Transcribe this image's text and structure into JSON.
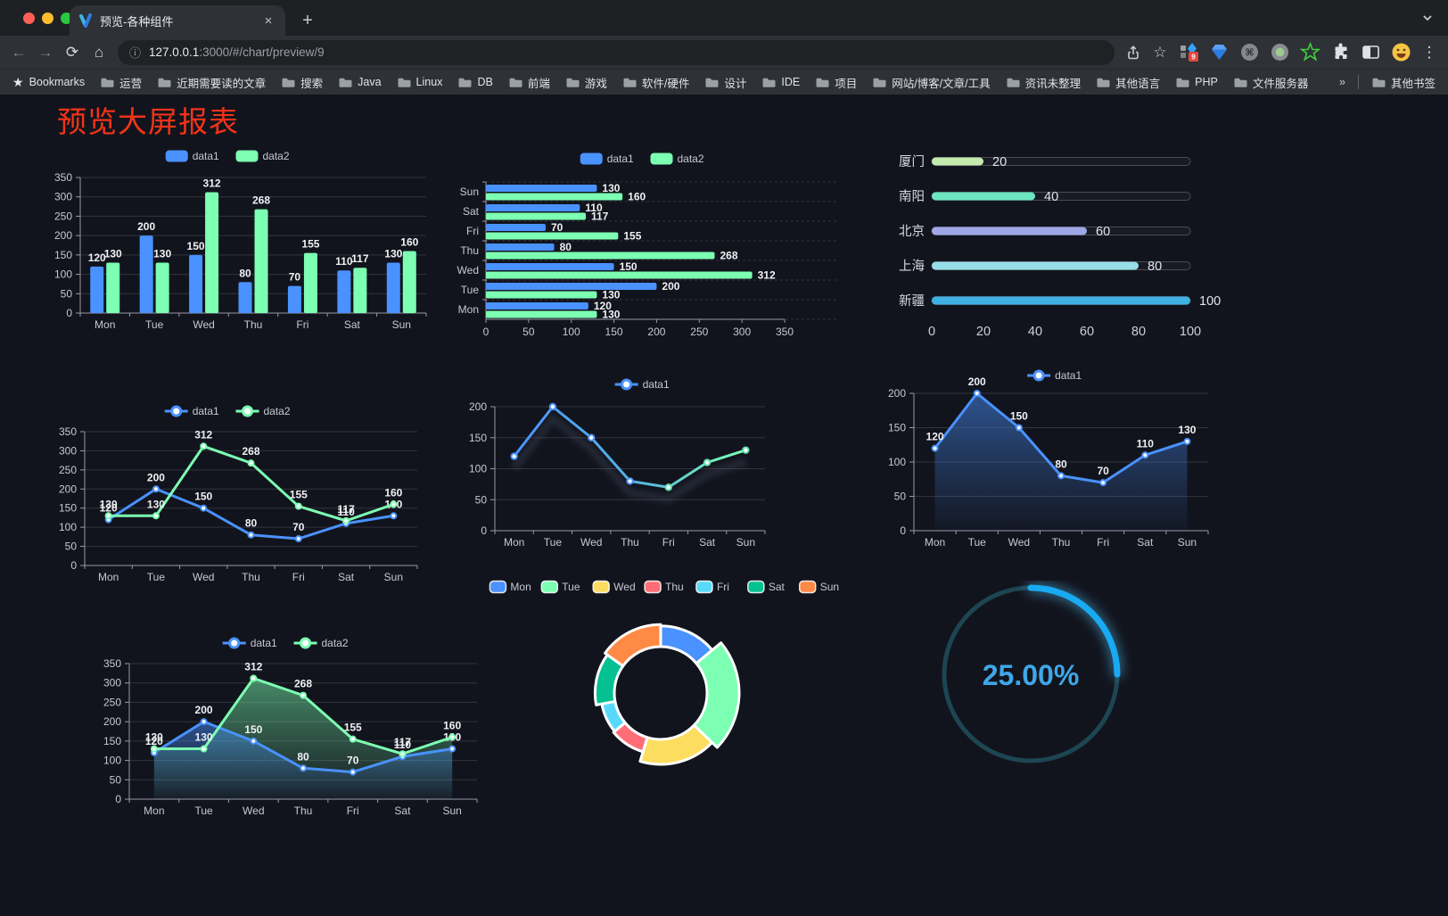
{
  "browser": {
    "tab": {
      "title": "预览-各种组件",
      "close_glyph": "×",
      "new_tab_glyph": "+"
    },
    "url": {
      "host": "127.0.0.1",
      "rest": ":3000/#/chart/preview/9"
    },
    "toolbar": {
      "nav_icons": [
        {
          "name": "back-arrow-icon",
          "glyph": "←",
          "enabled": false
        },
        {
          "name": "forward-arrow-icon",
          "glyph": "→",
          "enabled": false
        },
        {
          "name": "reload-icon",
          "glyph": "⟳",
          "enabled": true
        },
        {
          "name": "home-icon",
          "glyph": "⌂",
          "enabled": true
        }
      ],
      "star_glyph": "☆",
      "menu_glyph": "⋮",
      "extensions": [
        {
          "name": "extension-grid-diamond-icon",
          "badge": "9"
        },
        {
          "name": "extension-gem-icon"
        },
        {
          "name": "extension-command-icon"
        },
        {
          "name": "extension-green-dot-icon"
        },
        {
          "name": "extension-green-star-icon"
        },
        {
          "name": "extensions-puzzle-icon"
        },
        {
          "name": "side-panel-icon"
        },
        {
          "name": "extension-emoji-icon"
        }
      ]
    },
    "bookmarks_label": "Bookmarks",
    "bookmarks": [
      "运营",
      "近期需要读的文章",
      "搜索",
      "Java",
      "Linux",
      "DB",
      "前端",
      "游戏",
      "软件/硬件",
      "设计",
      "IDE",
      "项目",
      "网站/博客/文章/工具",
      "资讯未整理",
      "其他语言",
      "PHP",
      "文件服务器"
    ],
    "bookmarks_overflow": "»",
    "other_bookmarks": "其他书签"
  },
  "page": {
    "title": "预览大屏报表",
    "title_color": "#f23318",
    "background": "#12141d"
  },
  "chart_data": [
    {
      "id": "bar-vertical",
      "type": "bar",
      "categories": [
        "Mon",
        "Tue",
        "Wed",
        "Thu",
        "Fri",
        "Sat",
        "Sun"
      ],
      "series": [
        {
          "name": "data1",
          "color": "#4992ff",
          "values": [
            120,
            200,
            150,
            80,
            70,
            110,
            130
          ]
        },
        {
          "name": "data2",
          "color": "#7cffb2",
          "values": [
            130,
            130,
            312,
            268,
            155,
            117,
            160
          ]
        }
      ],
      "ylim": [
        0,
        350
      ],
      "ytick_step": 50,
      "legend_position": "top",
      "grid": true,
      "value_labels": true
    },
    {
      "id": "bar-horizontal",
      "type": "bar-h",
      "categories": [
        "Mon",
        "Tue",
        "Wed",
        "Thu",
        "Fri",
        "Sat",
        "Sun"
      ],
      "categories_top_to_bottom": [
        "Sun",
        "Sat",
        "Fri",
        "Thu",
        "Wed",
        "Tue",
        "Mon"
      ],
      "series": [
        {
          "name": "data1",
          "color": "#4992ff",
          "values": [
            120,
            200,
            150,
            80,
            70,
            110,
            130
          ]
        },
        {
          "name": "data2",
          "color": "#7cffb2",
          "values": [
            130,
            130,
            312,
            268,
            155,
            117,
            160
          ]
        }
      ],
      "xlim": [
        0,
        350
      ],
      "xtick_step": 50,
      "legend_position": "top",
      "value_labels": true
    },
    {
      "id": "capsule-progress",
      "type": "capsule",
      "rows": [
        {
          "label": "厦门",
          "value": 20,
          "color": "#c4ebad"
        },
        {
          "label": "南阳",
          "value": 40,
          "color": "#6be6c1"
        },
        {
          "label": "北京",
          "value": 60,
          "color": "#a0a7e6"
        },
        {
          "label": "上海",
          "value": 80,
          "color": "#96dee8"
        },
        {
          "label": "新疆",
          "value": 100,
          "color": "#3fb1e3"
        }
      ],
      "xlim": [
        0,
        100
      ],
      "xticks": [
        0,
        20,
        40,
        60,
        80,
        100
      ]
    },
    {
      "id": "line-two-series",
      "type": "line",
      "categories": [
        "Mon",
        "Tue",
        "Wed",
        "Thu",
        "Fri",
        "Sat",
        "Sun"
      ],
      "series": [
        {
          "name": "data1",
          "color": "#4992ff",
          "values": [
            120,
            200,
            150,
            80,
            70,
            110,
            130
          ]
        },
        {
          "name": "data2",
          "color": "#7cffb2",
          "values": [
            130,
            130,
            312,
            268,
            155,
            117,
            160
          ]
        }
      ],
      "ylim": [
        0,
        350
      ],
      "ytick_step": 50,
      "legend_position": "top",
      "value_labels": true
    },
    {
      "id": "line-gradient",
      "type": "line-gradient",
      "categories": [
        "Mon",
        "Tue",
        "Wed",
        "Thu",
        "Fri",
        "Sat",
        "Sun"
      ],
      "series": [
        {
          "name": "data1",
          "color_start": "#4992ff",
          "color_end": "#7cffb2",
          "values": [
            120,
            200,
            150,
            80,
            70,
            110,
            130
          ]
        }
      ],
      "ylim": [
        0,
        200
      ],
      "ytick_step": 50,
      "legend_position": "top",
      "value_labels": false
    },
    {
      "id": "area-single",
      "type": "area",
      "categories": [
        "Mon",
        "Tue",
        "Wed",
        "Thu",
        "Fri",
        "Sat",
        "Sun"
      ],
      "series": [
        {
          "name": "data1",
          "color": "#4992ff",
          "values": [
            120,
            200,
            150,
            80,
            70,
            110,
            130
          ]
        }
      ],
      "ylim": [
        0,
        200
      ],
      "ytick_step": 50,
      "legend_position": "top",
      "value_labels": true
    },
    {
      "id": "area-two-series",
      "type": "area2",
      "categories": [
        "Mon",
        "Tue",
        "Wed",
        "Thu",
        "Fri",
        "Sat",
        "Sun"
      ],
      "series": [
        {
          "name": "data1",
          "color": "#4992ff",
          "values": [
            120,
            200,
            150,
            80,
            70,
            110,
            130
          ]
        },
        {
          "name": "data2",
          "color": "#7cffb2",
          "values": [
            130,
            130,
            312,
            268,
            155,
            117,
            160
          ]
        }
      ],
      "ylim": [
        0,
        350
      ],
      "ytick_step": 50,
      "legend_position": "top",
      "value_labels": true
    },
    {
      "id": "pie-rose",
      "type": "pie",
      "rose": true,
      "donut": true,
      "items": [
        {
          "name": "Mon",
          "value": 120,
          "color": "#4992ff"
        },
        {
          "name": "Tue",
          "value": 200,
          "color": "#7cffb2"
        },
        {
          "name": "Wed",
          "value": 150,
          "color": "#fddd60"
        },
        {
          "name": "Thu",
          "value": 80,
          "color": "#ff6e76"
        },
        {
          "name": "Fri",
          "value": 70,
          "color": "#58d9f9"
        },
        {
          "name": "Sat",
          "value": 110,
          "color": "#05c091"
        },
        {
          "name": "Sun",
          "value": 130,
          "color": "#ff8a45"
        }
      ],
      "legend_position": "top",
      "border_color": "#ffffff"
    },
    {
      "id": "gauge",
      "type": "gauge",
      "value": 25,
      "display": "25.00%",
      "color": "#18aaf2",
      "track_color": "#1d4552",
      "text_color": "#3fa6e8"
    }
  ]
}
